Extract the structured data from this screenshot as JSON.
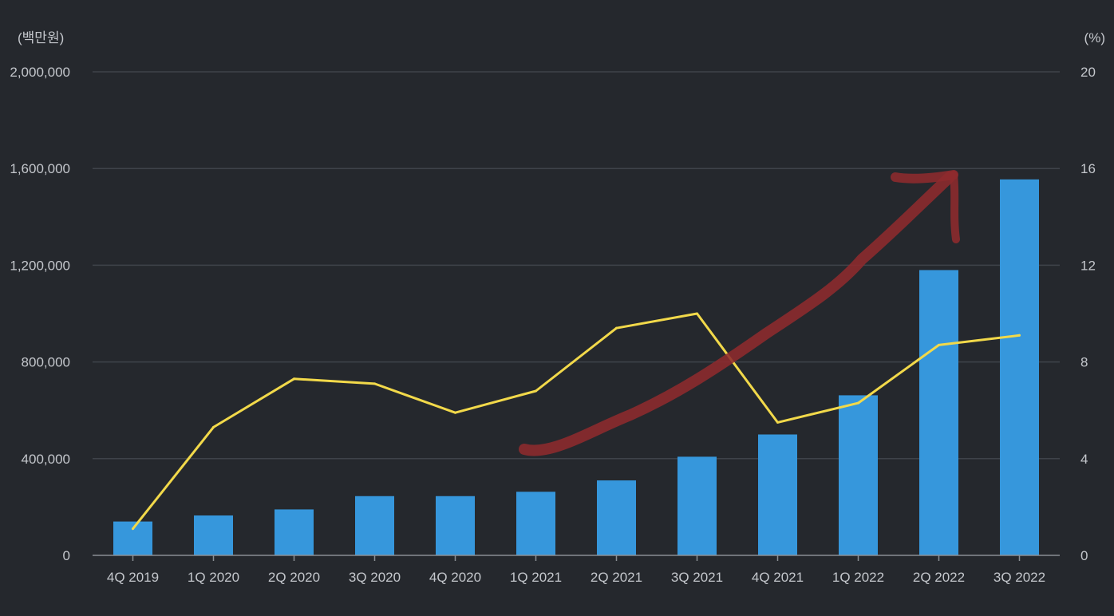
{
  "chart_data": {
    "type": "bar",
    "categories": [
      "4Q 2019",
      "1Q 2020",
      "2Q 2020",
      "3Q 2020",
      "4Q 2020",
      "1Q 2021",
      "2Q 2021",
      "3Q 2021",
      "4Q 2021",
      "1Q 2022",
      "2Q 2022",
      "3Q 2022"
    ],
    "series": [
      {
        "type": "bar",
        "axis": "left",
        "color": "#3697dc",
        "values": [
          140000,
          165000,
          190000,
          245000,
          245000,
          263000,
          310000,
          408000,
          500000,
          662000,
          1180000,
          1555000
        ]
      },
      {
        "type": "line",
        "axis": "right",
        "color": "#f2d94a",
        "values": [
          1.1,
          5.3,
          7.3,
          7.1,
          5.9,
          6.8,
          9.4,
          10.0,
          5.5,
          6.3,
          8.7,
          9.1
        ]
      }
    ],
    "left_axis": {
      "unit_label": "(백만원)",
      "ticks": [
        "0",
        "400,000",
        "800,000",
        "1,200,000",
        "1,600,000",
        "2,000,000"
      ],
      "ylim": [
        0,
        2000000
      ]
    },
    "right_axis": {
      "unit_label": "(%)",
      "ticks": [
        "0",
        "4",
        "8",
        "12",
        "16",
        "20"
      ],
      "ylim": [
        0,
        20
      ]
    },
    "grid": true,
    "annotation": {
      "type": "hand-drawn-arrow",
      "color": "#8e2a2d",
      "direction": "up-right"
    }
  }
}
